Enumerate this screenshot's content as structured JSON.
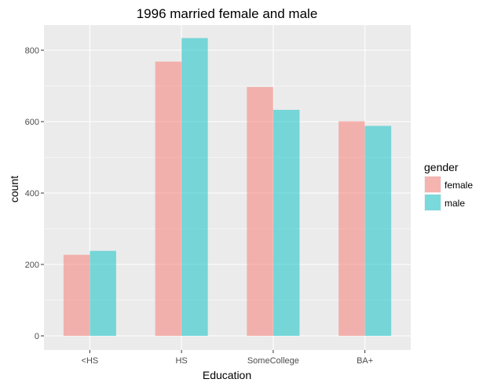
{
  "chart_data": {
    "type": "bar",
    "title": "1996 married female and male",
    "xlabel": "Education",
    "ylabel": "count",
    "categories": [
      "<HS",
      "HS",
      "SomeCollege",
      "BA+"
    ],
    "series": [
      {
        "name": "female",
        "values": [
          227,
          768,
          697,
          601
        ],
        "color": "#F8766D"
      },
      {
        "name": "male",
        "values": [
          238,
          834,
          633,
          588
        ],
        "color": "#00BFC4"
      }
    ],
    "ylim": [
      0,
      880
    ],
    "yticks": [
      0,
      200,
      400,
      600,
      800
    ],
    "grid": true,
    "legend": {
      "title": "gender",
      "position": "right"
    },
    "colors": {
      "panel_background": "#EBEBEB",
      "gridline": "#FFFFFF",
      "text": "#000000",
      "tick_text": "#4D4D4D"
    }
  }
}
